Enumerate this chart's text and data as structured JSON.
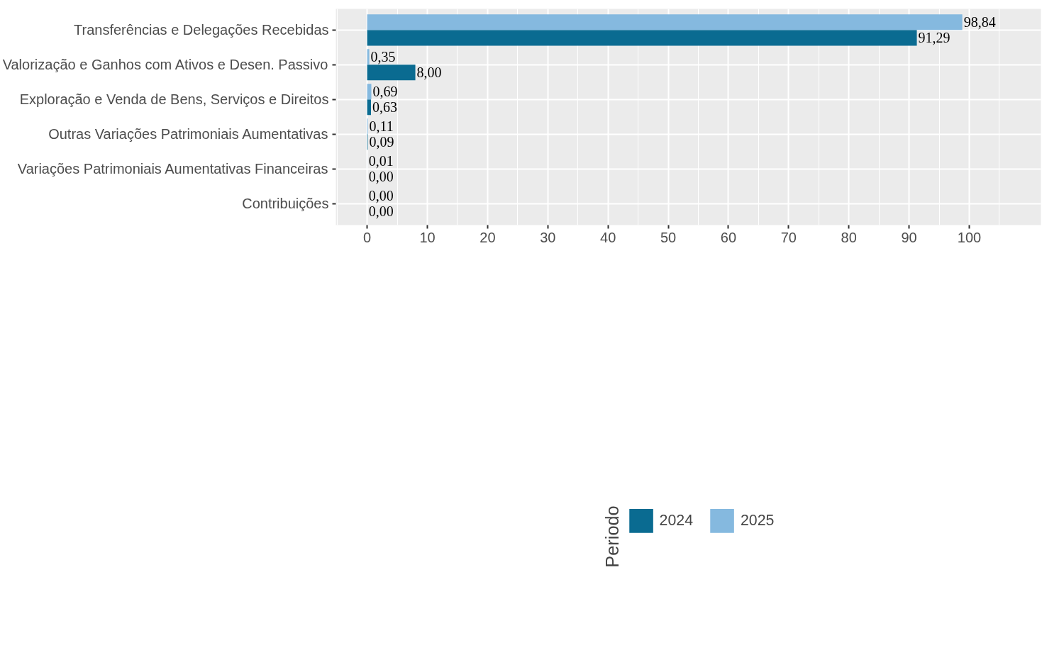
{
  "chart_data": {
    "type": "bar",
    "orientation": "horizontal",
    "categories": [
      "Transferências e Delegações Recebidas",
      "Valorização e Ganhos com Ativos e Desen. Passivo",
      "Exploração e Venda de Bens, Serviços e Direitos",
      "Outras Variações Patrimoniais Aumentativas",
      "Variações Patrimoniais Aumentativas Financeiras",
      "Contribuições"
    ],
    "series": [
      {
        "name": "2024",
        "color": "#0a6b91",
        "values": [
          91.29,
          8.0,
          0.63,
          0.09,
          0.0,
          0.0
        ],
        "value_labels": [
          "91,29",
          "8,00",
          "0,63",
          "0,09",
          "0,00",
          "0,00"
        ]
      },
      {
        "name": "2025",
        "color": "#85b9df",
        "values": [
          98.84,
          0.35,
          0.69,
          0.11,
          0.01,
          0.0
        ],
        "value_labels": [
          "98,84",
          "0,35",
          "0,69",
          "0,11",
          "0,01",
          "0,00"
        ]
      }
    ],
    "legend_title": "Periodo",
    "legend": "bottom",
    "xlim": [
      -5.2,
      111.9
    ],
    "xticks": [
      0,
      10,
      20,
      30,
      40,
      50,
      60,
      70,
      80,
      90,
      100
    ],
    "grid": true
  }
}
